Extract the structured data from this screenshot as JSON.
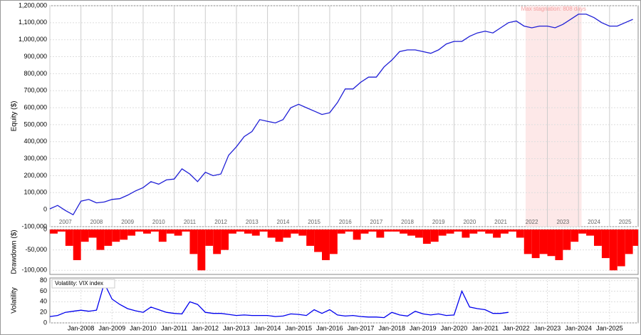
{
  "chart_data": [
    {
      "type": "line",
      "y_label": "Equity ($)",
      "annotation": "Max stagnation: 808 days",
      "span": [
        2022.3,
        2024.1
      ],
      "span_color": "#fde8e8",
      "xlim": [
        2007,
        2025.92
      ],
      "ylim": [
        -100000,
        1200000
      ],
      "grid": true,
      "xticks": [
        2007,
        2008,
        2009,
        2010,
        2011,
        2012,
        2013,
        2014,
        2015,
        2016,
        2017,
        2018,
        2019,
        2020,
        2021,
        2022,
        2023,
        2024,
        2025
      ],
      "yticks": [
        {
          "value": -100000,
          "label": "-100,000"
        },
        0,
        {
          "value": 100000,
          "label": "100,000"
        },
        {
          "value": 200000,
          "label": "200,000"
        },
        {
          "value": 300000,
          "label": "300,000"
        },
        {
          "value": 400000,
          "label": "400,000"
        },
        {
          "value": 500000,
          "label": "500,000"
        },
        {
          "value": 600000,
          "label": "600,000"
        },
        {
          "value": 700000,
          "label": "700,000"
        },
        {
          "value": 800000,
          "label": "800,000"
        },
        {
          "value": 900000,
          "label": "900,000"
        },
        {
          "value": 1000000,
          "label": "1,000,000"
        },
        {
          "value": 1100000,
          "label": "1,100,000"
        },
        {
          "value": 1200000,
          "label": "1,200,000"
        }
      ],
      "x": [
        2007.0,
        2007.25,
        2007.5,
        2007.75,
        2008.0,
        2008.25,
        2008.5,
        2008.75,
        2009.0,
        2009.25,
        2009.5,
        2009.75,
        2010.0,
        2010.25,
        2010.5,
        2010.75,
        2011.0,
        2011.25,
        2011.5,
        2011.75,
        2012.0,
        2012.25,
        2012.5,
        2012.75,
        2013.0,
        2013.25,
        2013.5,
        2013.75,
        2014.0,
        2014.25,
        2014.5,
        2014.75,
        2015.0,
        2015.25,
        2015.5,
        2015.75,
        2016.0,
        2016.25,
        2016.5,
        2016.75,
        2017.0,
        2017.25,
        2017.5,
        2017.75,
        2018.0,
        2018.25,
        2018.5,
        2018.75,
        2019.0,
        2019.25,
        2019.5,
        2019.75,
        2020.0,
        2020.25,
        2020.5,
        2020.75,
        2021.0,
        2021.25,
        2021.5,
        2021.75,
        2022.0,
        2022.25,
        2022.5,
        2022.75,
        2023.0,
        2023.25,
        2023.5,
        2023.75,
        2024.0,
        2024.25,
        2024.5,
        2024.75,
        2025.0,
        2025.25,
        2025.5,
        2025.75
      ],
      "series": [
        {
          "color": "#1f1fd6",
          "values": [
            5000,
            25000,
            -5000,
            -30000,
            50000,
            60000,
            40000,
            45000,
            60000,
            65000,
            85000,
            110000,
            130000,
            165000,
            150000,
            175000,
            180000,
            240000,
            210000,
            165000,
            220000,
            200000,
            210000,
            320000,
            370000,
            430000,
            460000,
            530000,
            520000,
            510000,
            530000,
            600000,
            620000,
            600000,
            580000,
            560000,
            570000,
            630000,
            710000,
            710000,
            750000,
            780000,
            780000,
            840000,
            880000,
            930000,
            940000,
            940000,
            930000,
            920000,
            940000,
            975000,
            990000,
            990000,
            1020000,
            1040000,
            1050000,
            1040000,
            1070000,
            1100000,
            1110000,
            1080000,
            1070000,
            1080000,
            1080000,
            1070000,
            1090000,
            1120000,
            1150000,
            1150000,
            1130000,
            1100000,
            1080000,
            1080000,
            1100000,
            1120000
          ]
        }
      ]
    },
    {
      "type": "bar",
      "y_label": "Drawdown ($)",
      "xlim": [
        2007,
        2025.92
      ],
      "ylim": [
        -110000,
        0
      ],
      "grid": true,
      "yticks": [
        {
          "value": -100000,
          "label": "-100,000"
        },
        {
          "value": -50000,
          "label": "-50,000"
        },
        0
      ],
      "x": [
        2007.0,
        2007.25,
        2007.5,
        2007.75,
        2008.0,
        2008.25,
        2008.5,
        2008.75,
        2009.0,
        2009.25,
        2009.5,
        2009.75,
        2010.0,
        2010.25,
        2010.5,
        2010.75,
        2011.0,
        2011.25,
        2011.5,
        2011.75,
        2012.0,
        2012.25,
        2012.5,
        2012.75,
        2013.0,
        2013.25,
        2013.5,
        2013.75,
        2014.0,
        2014.25,
        2014.5,
        2014.75,
        2015.0,
        2015.25,
        2015.5,
        2015.75,
        2016.0,
        2016.25,
        2016.5,
        2016.75,
        2017.0,
        2017.25,
        2017.5,
        2017.75,
        2018.0,
        2018.25,
        2018.5,
        2018.75,
        2019.0,
        2019.25,
        2019.5,
        2019.75,
        2020.0,
        2020.25,
        2020.5,
        2020.75,
        2021.0,
        2021.25,
        2021.5,
        2021.75,
        2022.0,
        2022.25,
        2022.5,
        2022.75,
        2023.0,
        2023.25,
        2023.5,
        2023.75,
        2024.0,
        2024.25,
        2024.5,
        2024.75,
        2025.0,
        2025.25,
        2025.5,
        2025.75
      ],
      "series": [
        {
          "color": "#ff0000",
          "values": [
            -10000,
            -5000,
            -40000,
            -75000,
            -30000,
            -20000,
            -50000,
            -40000,
            -30000,
            -25000,
            -15000,
            -5000,
            -10000,
            -5000,
            -30000,
            -10000,
            -15000,
            -5000,
            -60000,
            -100000,
            -40000,
            -60000,
            -50000,
            -10000,
            -5000,
            -10000,
            -15000,
            -5000,
            -20000,
            -30000,
            -20000,
            -10000,
            -15000,
            -40000,
            -55000,
            -75000,
            -60000,
            -10000,
            -5000,
            -25000,
            -10000,
            -5000,
            -20000,
            -5000,
            -5000,
            -10000,
            -15000,
            -20000,
            -35000,
            -30000,
            -15000,
            -10000,
            -5000,
            -20000,
            -10000,
            -5000,
            -10000,
            -20000,
            -10000,
            -5000,
            -20000,
            -60000,
            -70000,
            -60000,
            -65000,
            -75000,
            -50000,
            -30000,
            -10000,
            -15000,
            -40000,
            -70000,
            -100000,
            -90000,
            -60000,
            -40000
          ]
        }
      ]
    },
    {
      "type": "line",
      "y_label": "Volatility",
      "legend_label": "Volatility: VIX index",
      "xlim": [
        2007,
        2025.92
      ],
      "ylim": [
        0,
        85
      ],
      "grid": true,
      "yticks": [
        0,
        20,
        40,
        60,
        80
      ],
      "xticks": [
        {
          "value": 2008,
          "label": "Jan-2008"
        },
        {
          "value": 2009,
          "label": "Jan-2009"
        },
        {
          "value": 2010,
          "label": "Jan-2010"
        },
        {
          "value": 2011,
          "label": "Jan-2011"
        },
        {
          "value": 2012,
          "label": "Jan-2012"
        },
        {
          "value": 2013,
          "label": "Jan-2013"
        },
        {
          "value": 2014,
          "label": "Jan-2014"
        },
        {
          "value": 2015,
          "label": "Jan-2015"
        },
        {
          "value": 2016,
          "label": "Jan-2016"
        },
        {
          "value": 2017,
          "label": "Jan-2017"
        },
        {
          "value": 2018,
          "label": "Jan-2018"
        },
        {
          "value": 2019,
          "label": "Jan-2019"
        },
        {
          "value": 2020,
          "label": "Jan-2020"
        },
        {
          "value": 2021,
          "label": "Jan-2021"
        },
        {
          "value": 2022,
          "label": "Jan-2022"
        },
        {
          "value": 2023,
          "label": "Jan-2023"
        },
        {
          "value": 2024,
          "label": "Jan-2024"
        },
        {
          "value": 2025,
          "label": "Jan-2025"
        }
      ],
      "x": [
        2007.0,
        2007.25,
        2007.5,
        2007.75,
        2008.0,
        2008.25,
        2008.5,
        2008.75,
        2009.0,
        2009.25,
        2009.5,
        2009.75,
        2010.0,
        2010.25,
        2010.5,
        2010.75,
        2011.0,
        2011.25,
        2011.5,
        2011.75,
        2012.0,
        2012.25,
        2012.5,
        2012.75,
        2013.0,
        2013.25,
        2013.5,
        2013.75,
        2014.0,
        2014.25,
        2014.5,
        2014.75,
        2015.0,
        2015.25,
        2015.5,
        2015.75,
        2016.0,
        2016.25,
        2016.5,
        2016.75,
        2017.0,
        2017.25,
        2017.5,
        2017.75,
        2018.0,
        2018.25,
        2018.5,
        2018.75,
        2019.0,
        2019.25,
        2019.5,
        2019.75,
        2020.0,
        2020.25,
        2020.5,
        2020.75,
        2021.0,
        2021.25,
        2021.5,
        2021.75
      ],
      "series": [
        {
          "color": "#0000ee",
          "values": [
            12,
            14,
            20,
            22,
            24,
            22,
            24,
            75,
            45,
            35,
            27,
            23,
            20,
            30,
            25,
            20,
            18,
            17,
            40,
            35,
            20,
            18,
            18,
            16,
            14,
            15,
            14,
            14,
            14,
            12,
            13,
            17,
            16,
            14,
            25,
            18,
            25,
            15,
            13,
            14,
            12,
            11,
            11,
            10,
            20,
            15,
            13,
            22,
            17,
            15,
            17,
            14,
            15,
            60,
            30,
            27,
            25,
            18,
            18,
            20
          ]
        }
      ]
    }
  ]
}
